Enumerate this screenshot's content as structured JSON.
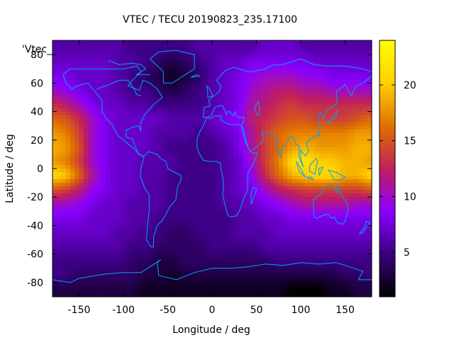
{
  "chart_data": {
    "type": "heatmap",
    "title": "VTEC / TECU 20190823_235.17100",
    "xlabel": "Longitude / deg",
    "ylabel": "Latitude / deg",
    "corner_key": "'Vtec_",
    "xlim": [
      -180,
      180
    ],
    "ylim": [
      -90,
      90
    ],
    "x_ticks": [
      -150,
      -100,
      -50,
      0,
      50,
      100,
      150
    ],
    "y_ticks": [
      -80,
      -60,
      -40,
      -20,
      0,
      20,
      40,
      60,
      80
    ],
    "colorbar": {
      "range": [
        1,
        24
      ],
      "ticks": [
        5,
        10,
        15,
        20
      ],
      "palette": [
        "#000000",
        "#3a0080",
        "#8a00ff",
        "#c0205a",
        "#e07000",
        "#ffd000",
        "#ffff00"
      ]
    },
    "grid": "off",
    "values_note_lon_step": 15,
    "lon": [
      -180,
      -165,
      -150,
      -135,
      -120,
      -105,
      -90,
      -75,
      -60,
      -45,
      -30,
      -15,
      0,
      15,
      30,
      45,
      60,
      75,
      90,
      105,
      120,
      135,
      150,
      165,
      180
    ],
    "lat": [
      85,
      75,
      65,
      55,
      45,
      35,
      25,
      15,
      5,
      -5,
      -15,
      -25,
      -35,
      -45,
      -55,
      -65,
      -75,
      -85
    ],
    "vtec": [
      [
        6,
        6,
        6,
        6,
        6,
        6,
        5,
        5,
        5,
        5,
        5,
        6,
        6,
        6,
        6,
        6,
        7,
        7,
        7,
        6,
        6,
        6,
        6,
        6,
        6
      ],
      [
        7,
        7,
        7,
        7,
        7,
        6,
        6,
        5,
        4,
        3,
        4,
        5,
        6,
        7,
        7,
        8,
        8,
        8,
        8,
        8,
        7,
        7,
        7,
        7,
        7
      ],
      [
        8,
        8,
        7,
        7,
        7,
        6,
        5,
        4,
        3,
        2,
        3,
        4,
        6,
        7,
        8,
        9,
        10,
        10,
        10,
        9,
        9,
        8,
        8,
        8,
        8
      ],
      [
        10,
        9,
        8,
        7,
        7,
        6,
        5,
        5,
        4,
        3,
        4,
        5,
        6,
        7,
        8,
        10,
        11,
        12,
        12,
        11,
        11,
        10,
        10,
        10,
        10
      ],
      [
        13,
        12,
        10,
        8,
        7,
        7,
        6,
        6,
        5,
        5,
        5,
        5,
        6,
        7,
        8,
        11,
        12,
        13,
        14,
        13,
        13,
        13,
        13,
        13,
        13
      ],
      [
        16,
        15,
        13,
        10,
        8,
        7,
        7,
        7,
        7,
        6,
        6,
        6,
        7,
        8,
        9,
        12,
        13,
        14,
        15,
        15,
        14,
        14,
        14,
        15,
        16
      ],
      [
        18,
        17,
        14,
        10,
        8,
        7,
        7,
        7,
        6,
        6,
        6,
        5,
        6,
        7,
        8,
        11,
        14,
        16,
        17,
        17,
        17,
        17,
        17,
        18,
        18
      ],
      [
        19,
        18,
        15,
        10,
        8,
        7,
        7,
        7,
        6,
        5,
        5,
        5,
        5,
        6,
        8,
        11,
        14,
        16,
        18,
        19,
        18,
        18,
        18,
        19,
        19
      ],
      [
        18,
        17,
        14,
        10,
        8,
        7,
        7,
        6,
        6,
        6,
        5,
        5,
        5,
        6,
        7,
        10,
        14,
        17,
        21,
        22,
        20,
        20,
        19,
        19,
        18
      ],
      [
        21,
        20,
        16,
        11,
        8,
        7,
        7,
        6,
        6,
        5,
        5,
        5,
        5,
        6,
        7,
        9,
        13,
        16,
        19,
        20,
        21,
        21,
        19,
        19,
        21
      ],
      [
        15,
        14,
        12,
        9,
        8,
        7,
        7,
        6,
        6,
        5,
        5,
        5,
        5,
        6,
        7,
        8,
        10,
        12,
        13,
        14,
        14,
        14,
        14,
        14,
        15
      ],
      [
        10,
        10,
        9,
        8,
        7,
        7,
        6,
        6,
        6,
        5,
        5,
        5,
        5,
        6,
        6,
        7,
        8,
        9,
        10,
        11,
        11,
        11,
        11,
        10,
        10
      ],
      [
        8,
        8,
        8,
        7,
        7,
        7,
        6,
        6,
        5,
        5,
        5,
        5,
        5,
        5,
        6,
        6,
        7,
        7,
        8,
        8,
        8,
        8,
        8,
        8,
        8
      ],
      [
        7,
        7,
        7,
        7,
        7,
        6,
        6,
        5,
        5,
        4,
        4,
        5,
        5,
        5,
        6,
        6,
        6,
        7,
        7,
        7,
        7,
        7,
        7,
        7,
        7
      ],
      [
        6,
        6,
        6,
        6,
        6,
        6,
        5,
        5,
        4,
        4,
        4,
        4,
        5,
        5,
        5,
        5,
        6,
        6,
        6,
        6,
        6,
        6,
        6,
        6,
        6
      ],
      [
        5,
        5,
        5,
        5,
        5,
        5,
        4,
        4,
        3,
        3,
        4,
        4,
        4,
        4,
        4,
        4,
        4,
        5,
        5,
        5,
        5,
        5,
        5,
        5,
        5
      ],
      [
        5,
        5,
        4,
        4,
        4,
        4,
        4,
        3,
        3,
        2,
        3,
        3,
        3,
        3,
        3,
        3,
        3,
        3,
        3,
        3,
        3,
        3,
        4,
        4,
        5
      ],
      [
        3,
        3,
        3,
        3,
        3,
        3,
        3,
        2,
        2,
        2,
        2,
        2,
        2,
        2,
        2,
        2,
        2,
        2,
        1,
        1,
        1,
        2,
        2,
        3,
        3
      ]
    ]
  }
}
